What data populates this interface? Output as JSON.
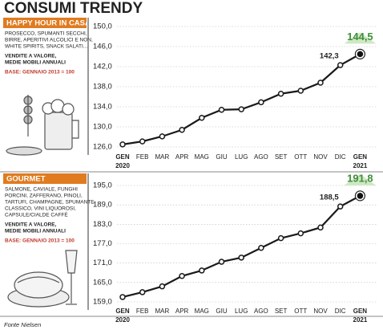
{
  "title": "CONSUMI TRENDY",
  "source": "Fonte Nielsen",
  "chart_data": [
    {
      "type": "line",
      "title": "HAPPY HOUR IN CASA",
      "description": [
        "PROSECCO, SPUMANTI SECCHI,",
        "BIRRE, APERITIVI ALCOLICI E NON,",
        "WHITE SPIRITS, SNACK SALATI..."
      ],
      "measure": [
        "VENDITE A VALORE,",
        "MEDIE MOBILI ANNUALI"
      ],
      "base": "BASE: GENNAIO 2013 = 100",
      "categories": [
        "GEN",
        "FEB",
        "MAR",
        "APR",
        "MAG",
        "GIU",
        "LUG",
        "AGO",
        "SET",
        "OTT",
        "NOV",
        "DIC",
        "GEN"
      ],
      "year_labels": [
        "2020",
        "2021"
      ],
      "values": [
        126.5,
        127.1,
        128.1,
        129.4,
        131.8,
        133.4,
        133.5,
        134.9,
        136.6,
        137.2,
        138.8,
        142.3,
        144.5
      ],
      "value_labels": [
        null,
        null,
        null,
        null,
        null,
        null,
        null,
        null,
        null,
        null,
        null,
        "142,3",
        "144,5"
      ],
      "color": "#1a1a1a",
      "ylim": [
        126,
        150
      ],
      "yticks": [
        {
          "value": 126,
          "label": "126,0"
        },
        {
          "value": 130,
          "label": "130,0"
        },
        {
          "value": 134,
          "label": "134,0"
        },
        {
          "value": 138,
          "label": "138,0"
        },
        {
          "value": 142,
          "label": "142,0"
        },
        {
          "value": 146,
          "label": "146,0"
        },
        {
          "value": 150,
          "label": "150,0"
        }
      ],
      "grid": true
    },
    {
      "type": "line",
      "title": "GOURMET",
      "description": [
        "SALMONE, CAVIALE, FUNGHI",
        "PORCINI, ZAFFERANO, PINOLI,",
        "TARTUFI, CHAMPAGNE, SPUMANTE",
        "CLASSICO, VINI LIQUOROSI,",
        "CAPSULE/CIALDE CAFFÈ"
      ],
      "measure": [
        "VENDITE A VALORE,",
        "MEDIE MOBILI ANNUALI"
      ],
      "base": "BASE: GENNAIO 2013 = 100",
      "categories": [
        "GEN",
        "FEB",
        "MAR",
        "APR",
        "MAG",
        "GIU",
        "LUG",
        "AGO",
        "SET",
        "OTT",
        "NOV",
        "DIC",
        "GEN"
      ],
      "year_labels": [
        "2020",
        "2021"
      ],
      "values": [
        160.5,
        162.0,
        163.8,
        167.0,
        168.7,
        171.4,
        172.7,
        175.7,
        178.7,
        180.2,
        182.0,
        188.5,
        191.8
      ],
      "value_labels": [
        null,
        null,
        null,
        null,
        null,
        null,
        null,
        null,
        null,
        null,
        null,
        "188,5",
        "191,8"
      ],
      "color": "#1a1a1a",
      "ylim": [
        159,
        195
      ],
      "yticks": [
        {
          "value": 159,
          "label": "159,0"
        },
        {
          "value": 165,
          "label": "165,0"
        },
        {
          "value": 171,
          "label": "171,0"
        },
        {
          "value": 177,
          "label": "177,0"
        },
        {
          "value": 183,
          "label": "183,0"
        },
        {
          "value": 189,
          "label": "189,0"
        },
        {
          "value": 195,
          "label": "195,0"
        }
      ],
      "grid": true
    }
  ]
}
